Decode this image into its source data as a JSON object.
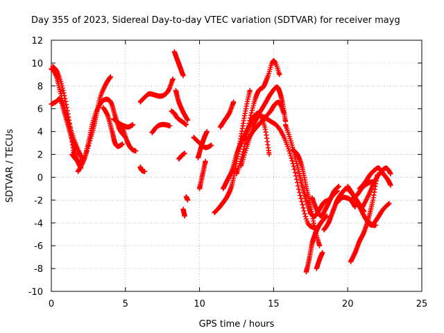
{
  "chart_data": {
    "type": "scatter",
    "title": "Day 355 of 2023, Sidereal Day-to-day VTEC variation (SDTVAR) for receiver mayg",
    "xlabel": "GPS time / hours",
    "ylabel": "SDTVAR / TECUs",
    "xlim": [
      0,
      25
    ],
    "ylim": [
      -10,
      12
    ],
    "xticks": [
      "0",
      "5",
      "10",
      "15",
      "20",
      "25"
    ],
    "yticks": [
      "-10",
      "-8",
      "-6",
      "-4",
      "-2",
      "0",
      "2",
      "4",
      "6",
      "8",
      "10",
      "12"
    ],
    "grid": true,
    "marker": "+",
    "color": "#ff0000",
    "series": [
      {
        "name": "s1",
        "x": [
          0.0,
          0.3,
          0.6,
          1.0,
          1.4,
          1.8,
          2.1
        ],
        "y": [
          9.5,
          9.0,
          7.5,
          5.5,
          3.8,
          2.4,
          1.6
        ]
      },
      {
        "name": "s2",
        "x": [
          0.0,
          0.3,
          0.6,
          0.9,
          1.2,
          1.5,
          1.7,
          2.0
        ],
        "y": [
          6.4,
          6.6,
          6.8,
          5.6,
          4.2,
          2.8,
          1.6,
          0.8
        ]
      },
      {
        "name": "s3",
        "x": [
          0.1,
          0.4,
          0.8,
          1.2,
          1.5
        ],
        "y": [
          9.7,
          9.2,
          7.6,
          5.0,
          2.2
        ]
      },
      {
        "name": "s4",
        "x": [
          1.4,
          1.8,
          2.2,
          2.7,
          3.0,
          3.3,
          3.7,
          4.0
        ],
        "y": [
          2.0,
          1.4,
          1.6,
          3.6,
          5.2,
          7.0,
          8.2,
          8.8
        ]
      },
      {
        "name": "s5",
        "x": [
          1.8,
          2.2,
          2.5,
          2.8,
          3.2,
          3.6,
          4.0,
          4.3,
          4.6,
          5.0
        ],
        "y": [
          0.5,
          1.5,
          3.0,
          4.8,
          6.2,
          6.8,
          6.6,
          5.4,
          4.2,
          3.5
        ]
      },
      {
        "name": "s6",
        "x": [
          3.5,
          3.8,
          4.1,
          4.3,
          4.5,
          4.8
        ],
        "y": [
          6.1,
          5.4,
          4.0,
          3.0,
          2.7,
          2.9
        ]
      },
      {
        "name": "s7",
        "x": [
          4.2,
          4.6,
          4.9,
          5.2,
          5.5
        ],
        "y": [
          5.1,
          4.7,
          4.5,
          4.4,
          4.6
        ]
      },
      {
        "name": "s8",
        "x": [
          4.8,
          5.1,
          5.4,
          5.7
        ],
        "y": [
          4.4,
          3.2,
          2.5,
          2.3
        ]
      },
      {
        "name": "s9",
        "x": [
          6.0,
          6.1,
          6.3
        ],
        "y": [
          0.9,
          0.6,
          0.5
        ]
      },
      {
        "name": "s10",
        "x": [
          6.0,
          6.3,
          6.6,
          7.0,
          7.3,
          7.6,
          7.9,
          8.2
        ],
        "y": [
          6.6,
          7.0,
          7.3,
          7.2,
          7.1,
          7.2,
          7.6,
          8.6
        ]
      },
      {
        "name": "s11",
        "x": [
          6.8,
          7.1,
          7.4,
          7.7,
          8.0
        ],
        "y": [
          3.9,
          4.4,
          4.6,
          4.6,
          4.5
        ]
      },
      {
        "name": "s12",
        "x": [
          8.1,
          8.3,
          8.5,
          8.8,
          9.1
        ],
        "y": [
          5.8,
          5.6,
          5.2,
          4.9,
          4.6
        ]
      },
      {
        "name": "s13",
        "x": [
          8.4,
          8.6,
          8.9,
          9.2
        ],
        "y": [
          7.6,
          6.6,
          5.7,
          5.0
        ]
      },
      {
        "name": "s14",
        "x": [
          8.3,
          8.5,
          8.7,
          8.9
        ],
        "y": [
          11.0,
          10.3,
          9.6,
          8.9
        ]
      },
      {
        "name": "s15",
        "x": [
          8.6,
          8.8,
          9.0
        ],
        "y": [
          1.6,
          1.9,
          2.1
        ]
      },
      {
        "name": "s16",
        "x": [
          9.1,
          9.2
        ],
        "y": [
          -1.7,
          -2.0
        ]
      },
      {
        "name": "s17",
        "x": [
          8.9,
          9.0
        ],
        "y": [
          -2.8,
          -3.4
        ]
      },
      {
        "name": "s18",
        "x": [
          9.6,
          10.0,
          10.4,
          10.8
        ],
        "y": [
          3.5,
          3.0,
          2.6,
          2.8
        ]
      },
      {
        "name": "s19",
        "x": [
          9.9,
          10.1,
          10.3,
          10.5
        ],
        "y": [
          1.7,
          2.6,
          3.4,
          4.0
        ]
      },
      {
        "name": "s20",
        "x": [
          10.0,
          10.2,
          10.4
        ],
        "y": [
          -1.0,
          0.2,
          1.4
        ]
      },
      {
        "name": "s21",
        "x": [
          11.0,
          11.3,
          11.6,
          11.9,
          12.2,
          12.5,
          12.8,
          13.1,
          13.4
        ],
        "y": [
          -3.1,
          -2.7,
          -2.2,
          -1.6,
          -0.6,
          1.4,
          3.6,
          5.8,
          7.6
        ]
      },
      {
        "name": "s22",
        "x": [
          11.4,
          11.7,
          12.0,
          12.3
        ],
        "y": [
          4.4,
          5.0,
          5.6,
          6.6
        ]
      },
      {
        "name": "s23",
        "x": [
          11.6,
          11.9,
          12.2,
          12.5,
          12.8,
          13.1,
          13.4,
          13.7,
          14.0
        ],
        "y": [
          -1.0,
          -0.2,
          0.6,
          2.0,
          3.0,
          3.8,
          4.6,
          5.2,
          5.4
        ]
      },
      {
        "name": "s24",
        "x": [
          12.5,
          12.9,
          13.3,
          13.7,
          14.0,
          14.3,
          14.6,
          15.0,
          15.4
        ],
        "y": [
          0.3,
          2.0,
          4.5,
          6.6,
          7.6,
          7.9,
          8.8,
          10.2,
          9.0
        ]
      },
      {
        "name": "s25",
        "x": [
          12.8,
          13.2,
          13.6,
          14.0,
          14.4,
          14.8,
          15.2,
          15.4,
          15.6,
          15.8
        ],
        "y": [
          1.0,
          2.7,
          4.3,
          5.5,
          6.4,
          7.3,
          7.9,
          7.5,
          6.5,
          4.9
        ]
      },
      {
        "name": "s26",
        "x": [
          13.2,
          13.6,
          14.0,
          14.4,
          14.8,
          15.1,
          15.4,
          15.7
        ],
        "y": [
          3.2,
          4.0,
          4.6,
          5.2,
          5.8,
          6.4,
          6.5,
          5.6
        ]
      },
      {
        "name": "s27",
        "x": [
          13.6,
          14.0,
          14.4,
          14.7
        ],
        "y": [
          5.2,
          5.6,
          4.4,
          2.0
        ]
      },
      {
        "name": "s28",
        "x": [
          14.3,
          14.8,
          15.3,
          15.8,
          16.3,
          16.8,
          17.3,
          17.8
        ],
        "y": [
          5.3,
          4.9,
          4.4,
          3.2,
          1.2,
          -1.6,
          -4.0,
          -4.4
        ]
      },
      {
        "name": "s29",
        "x": [
          15.8,
          16.2,
          16.6,
          16.9,
          17.2,
          17.5
        ],
        "y": [
          4.6,
          3.0,
          1.0,
          -0.6,
          -2.0,
          -3.2
        ]
      },
      {
        "name": "s30",
        "x": [
          16.3,
          16.6,
          16.9,
          17.2,
          17.5,
          17.8,
          18.1
        ],
        "y": [
          2.4,
          2.0,
          1.0,
          -0.8,
          -2.6,
          -4.6,
          -6.0
        ]
      },
      {
        "name": "s31",
        "x": [
          17.2,
          17.4,
          17.6,
          17.8,
          18.0,
          18.3,
          18.6
        ],
        "y": [
          -8.3,
          -7.2,
          -5.8,
          -5.0,
          -4.4,
          -3.8,
          -3.4
        ]
      },
      {
        "name": "s32",
        "x": [
          17.6,
          17.9,
          18.2,
          18.5,
          18.8,
          19.1,
          19.4
        ],
        "y": [
          -1.8,
          -2.8,
          -3.4,
          -2.8,
          -2.0,
          -1.2,
          -0.8
        ]
      },
      {
        "name": "s33",
        "x": [
          17.5,
          17.8,
          18.1,
          18.4,
          18.7,
          19.0,
          19.3
        ],
        "y": [
          -3.2,
          -3.4,
          -2.8,
          -2.2,
          -2.0,
          -1.6,
          -1.2
        ]
      },
      {
        "name": "s34",
        "x": [
          17.9,
          18.1,
          18.3
        ],
        "y": [
          -8.0,
          -7.2,
          -6.6
        ]
      },
      {
        "name": "s35",
        "x": [
          18.4,
          18.7,
          19.0,
          19.3,
          19.6,
          19.9,
          20.2,
          20.5,
          20.8,
          21.1
        ],
        "y": [
          -4.6,
          -4.0,
          -3.0,
          -2.0,
          -1.4,
          -1.0,
          -1.3,
          -1.8,
          -2.4,
          -3.0
        ]
      },
      {
        "name": "s36",
        "x": [
          19.3,
          19.6,
          19.9,
          20.2,
          20.5
        ],
        "y": [
          -2.2,
          -1.8,
          -1.8,
          -2.0,
          -2.6
        ]
      },
      {
        "name": "s37",
        "x": [
          20.2,
          20.5,
          20.8,
          21.1,
          21.4,
          21.7,
          22.0
        ],
        "y": [
          -7.4,
          -6.6,
          -5.6,
          -4.8,
          -3.6,
          -2.0,
          0.2
        ]
      },
      {
        "name": "s38",
        "x": [
          20.0,
          20.4,
          20.8,
          21.2,
          21.6,
          22.0,
          22.4,
          22.8
        ],
        "y": [
          -0.8,
          -1.6,
          -2.6,
          -3.6,
          -4.2,
          -3.6,
          -2.8,
          -2.3
        ]
      },
      {
        "name": "s39",
        "x": [
          20.2,
          20.6,
          21.0,
          21.4,
          21.7
        ],
        "y": [
          -2.0,
          -1.6,
          -0.9,
          -0.5,
          -0.4
        ]
      },
      {
        "name": "s40",
        "x": [
          20.8,
          21.2,
          21.5,
          21.8,
          22.1,
          22.4,
          22.7,
          22.9
        ],
        "y": [
          -1.0,
          -0.4,
          0.2,
          0.6,
          0.8,
          0.3,
          -0.2,
          -0.7
        ]
      },
      {
        "name": "s41",
        "x": [
          21.0,
          21.4,
          21.8,
          22.2,
          22.6,
          22.9
        ],
        "y": [
          -2.6,
          -1.6,
          -0.4,
          0.4,
          0.8,
          0.3
        ]
      },
      {
        "name": "s42",
        "x": [
          21.5,
          21.7,
          21.9
        ],
        "y": [
          -4.0,
          -4.2,
          -4.2
        ]
      }
    ]
  }
}
